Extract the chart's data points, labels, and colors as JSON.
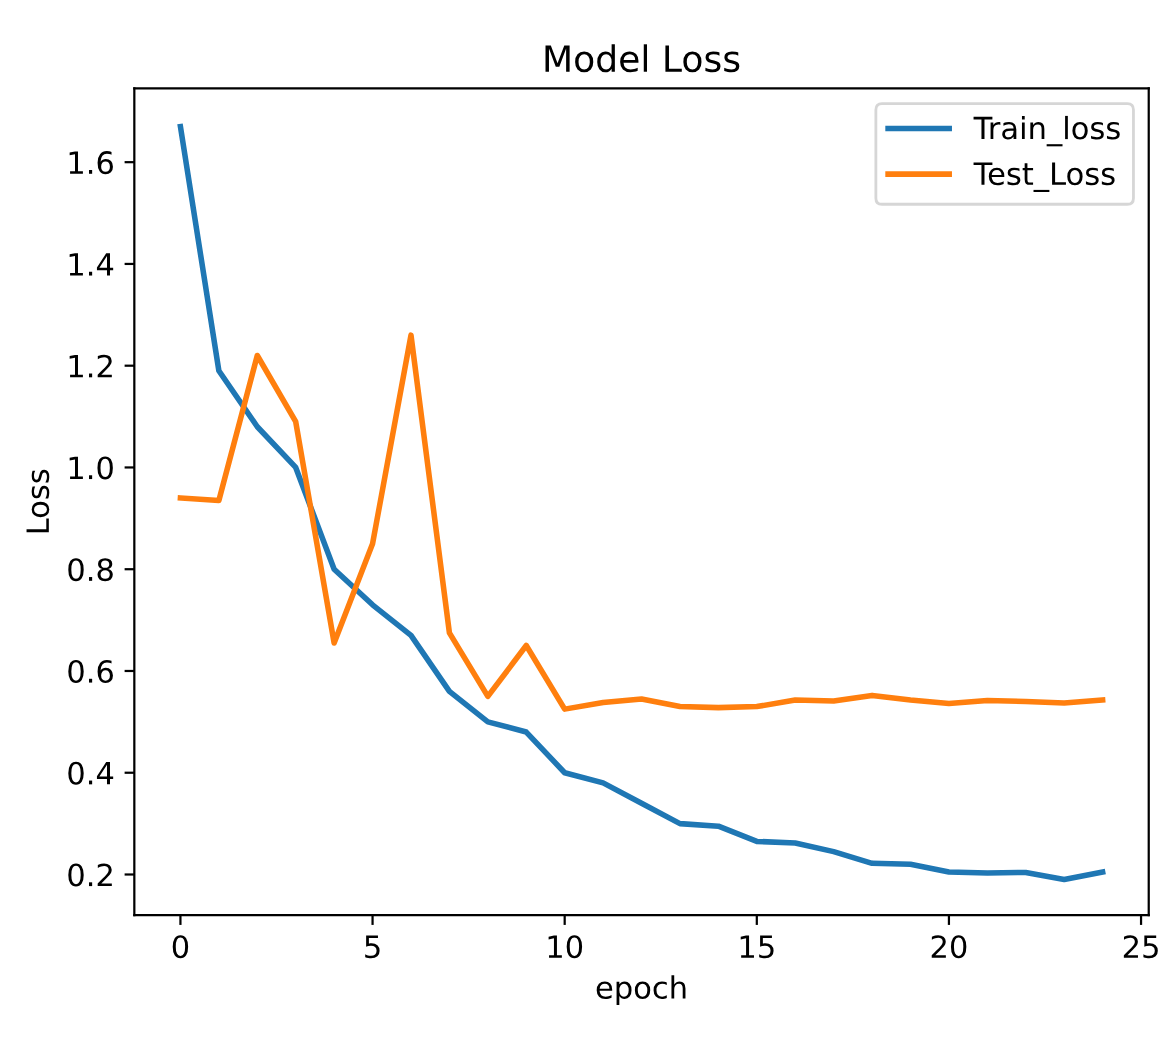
{
  "chart_data": {
    "type": "line",
    "title": "Model Loss",
    "xlabel": "epoch",
    "ylabel": "Loss",
    "x": [
      0,
      1,
      2,
      3,
      4,
      5,
      6,
      7,
      8,
      9,
      10,
      11,
      12,
      13,
      14,
      15,
      16,
      17,
      18,
      19,
      20,
      21,
      22,
      23,
      24
    ],
    "series": [
      {
        "name": "Train_loss",
        "color": "#1f77b4",
        "values": [
          1.67,
          1.19,
          1.08,
          1.0,
          0.8,
          0.73,
          0.67,
          0.56,
          0.5,
          0.48,
          0.4,
          0.38,
          0.34,
          0.3,
          0.295,
          0.265,
          0.262,
          0.245,
          0.222,
          0.22,
          0.205,
          0.203,
          0.204,
          0.19,
          0.205
        ]
      },
      {
        "name": "Test_Loss",
        "color": "#ff7f0e",
        "values": [
          0.94,
          0.935,
          1.22,
          1.09,
          0.655,
          0.85,
          1.26,
          0.675,
          0.55,
          0.65,
          0.525,
          0.538,
          0.545,
          0.53,
          0.528,
          0.53,
          0.543,
          0.541,
          0.552,
          0.543,
          0.536,
          0.542,
          0.54,
          0.537,
          0.543
        ]
      }
    ],
    "xlim": [
      -1.2,
      25.2
    ],
    "ylim": [
      0.12,
      1.745
    ],
    "xticks": [
      0,
      5,
      10,
      15,
      20,
      25
    ],
    "yticks": [
      0.2,
      0.4,
      0.6,
      0.8,
      {
        "value": 1,
        "label": "1.0"
      },
      1.2,
      1.4,
      1.6
    ],
    "legend": "top right",
    "grid": false
  }
}
